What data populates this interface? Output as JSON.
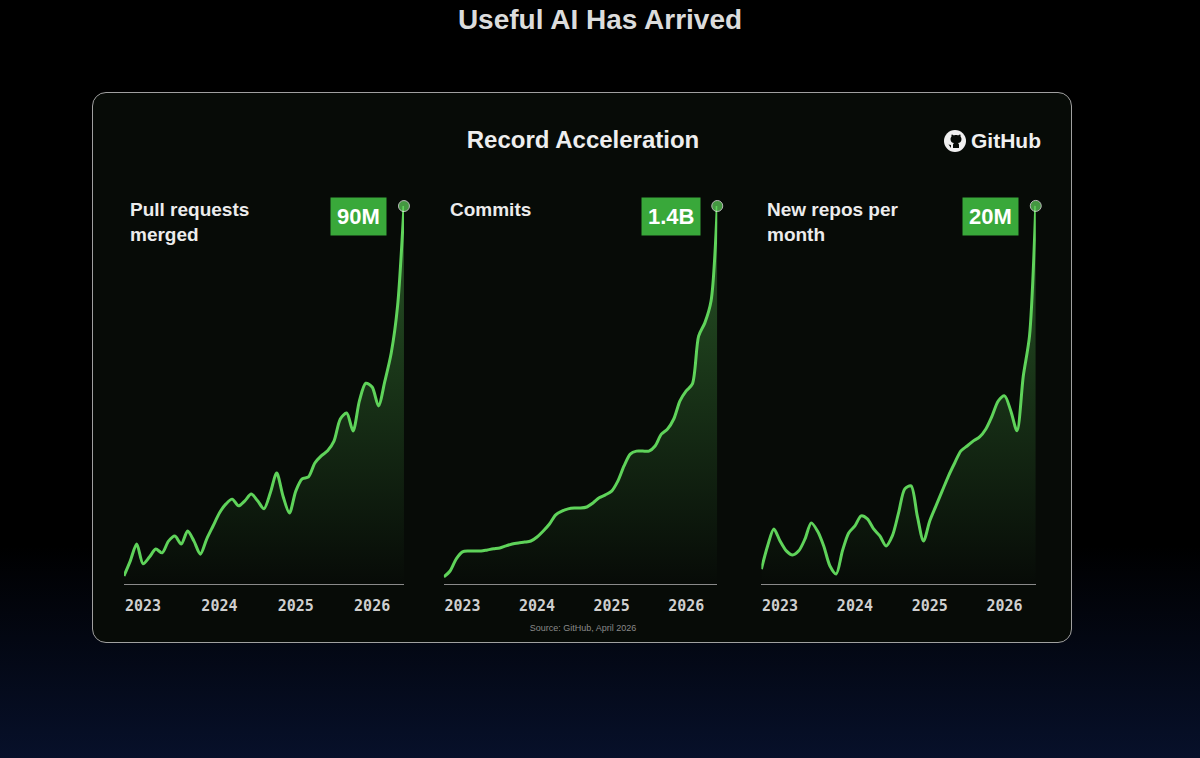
{
  "header": {
    "title": "Useful AI Has Arrived",
    "subtitle": "Record Acceleration",
    "brand": "GitHub"
  },
  "footer": {
    "source": "Source: GitHub, April 2026"
  },
  "chart_data": [
    {
      "type": "line",
      "title": "Pull requests merged",
      "categories": [
        null,
        null,
        null,
        "2023",
        null,
        null,
        null,
        null,
        null,
        null,
        null,
        null,
        null,
        null,
        null,
        "2024",
        null,
        null,
        null,
        null,
        null,
        null,
        null,
        null,
        null,
        null,
        null,
        "2025",
        null,
        null,
        null,
        null,
        null,
        null,
        null,
        null,
        null,
        null,
        null,
        "2026",
        null,
        null,
        null,
        null,
        null
      ],
      "values": [
        1900000,
        5500000,
        9500000,
        4800000,
        6400000,
        8300000,
        7400000,
        10200000,
        11400000,
        9500000,
        12600000,
        10200000,
        7100000,
        10700000,
        13800000,
        16900000,
        19000000,
        20200000,
        18600000,
        19800000,
        21400000,
        19800000,
        17900000,
        21700000,
        26400000,
        20900000,
        16900000,
        22100000,
        25000000,
        25500000,
        28800000,
        30500000,
        31700000,
        34000000,
        39300000,
        40700000,
        36400000,
        43600000,
        47800000,
        46900000,
        42400000,
        48300000,
        55000000,
        66200000,
        90000000
      ],
      "value_labels": [
        null,
        null,
        null,
        null,
        null,
        null,
        null,
        null,
        null,
        null,
        null,
        null,
        null,
        null,
        null,
        null,
        null,
        null,
        null,
        null,
        null,
        null,
        null,
        null,
        null,
        null,
        null,
        null,
        null,
        null,
        null,
        null,
        null,
        null,
        null,
        null,
        null,
        null,
        null,
        null,
        null,
        null,
        null,
        null,
        "90M"
      ],
      "data_labels": true,
      "color": "#5fd35a",
      "marker": "dot",
      "line_style": "smooth",
      "ylim": [
        0,
        91200000
      ],
      "yticks": [],
      "grid": false,
      "tick_labels": "x"
    },
    {
      "type": "line",
      "title": "Commits",
      "categories": [
        null,
        null,
        null,
        "2023",
        null,
        null,
        null,
        null,
        null,
        null,
        null,
        null,
        null,
        null,
        null,
        "2024",
        null,
        null,
        null,
        null,
        null,
        null,
        null,
        null,
        null,
        null,
        null,
        "2025",
        null,
        null,
        null,
        null,
        null,
        null,
        null,
        null,
        null,
        null,
        null,
        "2026",
        null,
        null,
        null,
        null,
        null
      ],
      "values": [
        26000000,
        48000000,
        93000000,
        119000000,
        122000000,
        122000000,
        122000000,
        126000000,
        130000000,
        133000000,
        141000000,
        148000000,
        152000000,
        155000000,
        159000000,
        174000000,
        196000000,
        222000000,
        256000000,
        270000000,
        278000000,
        281000000,
        281000000,
        285000000,
        300000000,
        319000000,
        330000000,
        344000000,
        381000000,
        437000000,
        481000000,
        492000000,
        492000000,
        492000000,
        511000000,
        555000000,
        574000000,
        611000000,
        678000000,
        715000000,
        741000000,
        918000000,
        967000000,
        1048000000,
        1400000000
      ],
      "value_labels": [
        null,
        null,
        null,
        null,
        null,
        null,
        null,
        null,
        null,
        null,
        null,
        null,
        null,
        null,
        null,
        null,
        null,
        null,
        null,
        null,
        null,
        null,
        null,
        null,
        null,
        null,
        null,
        null,
        null,
        null,
        null,
        null,
        null,
        null,
        null,
        null,
        null,
        null,
        null,
        null,
        null,
        null,
        null,
        null,
        "1.4B"
      ],
      "data_labels": true,
      "color": "#5fd35a",
      "marker": "dot",
      "line_style": "smooth",
      "ylim": [
        0,
        1418500000
      ],
      "yticks": [],
      "grid": false,
      "tick_labels": "x"
    },
    {
      "type": "line",
      "title": "New repos per month",
      "categories": [
        null,
        null,
        null,
        "2023",
        null,
        null,
        null,
        null,
        null,
        null,
        null,
        null,
        null,
        null,
        null,
        "2024",
        null,
        null,
        null,
        null,
        null,
        null,
        null,
        null,
        null,
        null,
        null,
        "2025",
        null,
        null,
        null,
        null,
        null,
        null,
        null,
        null,
        null,
        null,
        null,
        "2026",
        null,
        null,
        null,
        null,
        null
      ],
      "values": [
        790000,
        2010000,
        2910000,
        2270000,
        1750000,
        1530000,
        1750000,
        2380000,
        3230000,
        2800000,
        2010000,
        950000,
        530000,
        1750000,
        2700000,
        3070000,
        3600000,
        3440000,
        2910000,
        2540000,
        2010000,
        2540000,
        3760000,
        5030000,
        5190000,
        3600000,
        2270000,
        3330000,
        4130000,
        4920000,
        5710000,
        6400000,
        7040000,
        7300000,
        7570000,
        7780000,
        8200000,
        8890000,
        9680000,
        9950000,
        9150000,
        8100000,
        11000000,
        13120000,
        20000000
      ],
      "value_labels": [
        null,
        null,
        null,
        null,
        null,
        null,
        null,
        null,
        null,
        null,
        null,
        null,
        null,
        null,
        null,
        null,
        null,
        null,
        null,
        null,
        null,
        null,
        null,
        null,
        null,
        null,
        null,
        null,
        null,
        null,
        null,
        null,
        null,
        null,
        null,
        null,
        null,
        null,
        null,
        null,
        null,
        null,
        null,
        null,
        "20M"
      ],
      "data_labels": true,
      "color": "#5fd35a",
      "marker": "dot",
      "line_style": "smooth",
      "ylim": [
        0,
        20260000
      ],
      "yticks": [],
      "grid": false,
      "tick_labels": "x"
    }
  ]
}
